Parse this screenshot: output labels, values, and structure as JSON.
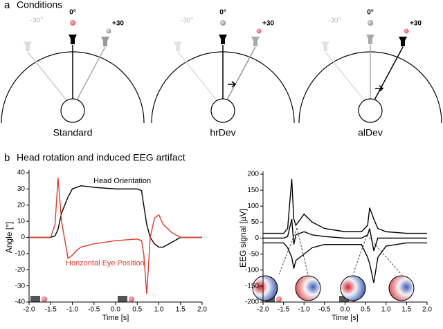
{
  "panel_a": {
    "label": "a",
    "title": "Conditions",
    "angle_labels": [
      "-30°",
      "0°",
      "+30"
    ],
    "conditions": [
      "Standard",
      "hrDev",
      "alDev"
    ]
  },
  "panel_b": {
    "label": "b",
    "title": "Head rotation and induced EEG artifact"
  },
  "chart_data": [
    {
      "type": "line",
      "xlabel": "Time [s]",
      "ylabel": "Angle [°]",
      "x": [
        -2,
        -1.5,
        -1.4,
        -1.33,
        -1.25,
        -1.1,
        -1.0,
        -0.9,
        -0.8,
        -0.5,
        0,
        0.5,
        0.6,
        0.65,
        0.72,
        0.8,
        0.9,
        1.0,
        1.1,
        1.3,
        1.5,
        2.0
      ],
      "series": [
        {
          "name": "Head Orientation",
          "color": "#000000",
          "values": [
            0,
            0,
            1,
            5,
            15,
            25,
            30,
            31,
            32,
            31,
            30,
            30,
            29,
            20,
            8,
            0,
            -4,
            -6,
            -6,
            -3,
            0,
            0
          ]
        },
        {
          "name": "Horizontal Eye Position",
          "color": "#e03a2a",
          "values": [
            0,
            0,
            8,
            37,
            10,
            -13,
            -11,
            -8,
            -6,
            -4,
            -2,
            -1,
            -2,
            -10,
            -35,
            0,
            12,
            14,
            8,
            3,
            0,
            0
          ]
        }
      ],
      "xlim": [
        -2,
        2
      ],
      "xticks": [
        {
          "value": -2,
          "label": "-2.0"
        },
        -1.5,
        {
          "value": -1,
          "label": "-1.0"
        },
        -0.5,
        {
          "value": 0,
          "label": "0.0"
        },
        0.5,
        {
          "value": 1,
          "label": "1.0"
        },
        1.5,
        {
          "value": 2,
          "label": "2.0"
        }
      ],
      "ylim": [
        -40,
        40
      ],
      "yticks": [
        -40,
        -30,
        -20,
        -10,
        0,
        10,
        20,
        30,
        40
      ],
      "grid": false
    },
    {
      "type": "line",
      "xlabel": "Time [s]",
      "ylabel": "EEG signal [µV]",
      "x": [
        -2,
        -1.5,
        -1.4,
        -1.3,
        -1.25,
        -1.2,
        -1.0,
        -0.8,
        -0.5,
        0,
        0.4,
        0.55,
        0.6,
        0.7,
        0.8,
        1.0,
        1.5,
        2.0
      ],
      "series": [
        {
          "color": "#000000",
          "values": [
            15,
            15,
            30,
            185,
            60,
            40,
            75,
            50,
            30,
            20,
            20,
            40,
            95,
            60,
            30,
            20,
            15,
            15
          ]
        },
        {
          "color": "#000000",
          "values": [
            -15,
            -15,
            -30,
            -60,
            -95,
            -70,
            -50,
            -30,
            -20,
            -20,
            -20,
            -60,
            -80,
            -140,
            -60,
            -25,
            -15,
            -15
          ]
        },
        {
          "color": "#000000",
          "values": [
            0,
            0,
            5,
            60,
            -20,
            10,
            20,
            10,
            5,
            0,
            0,
            10,
            30,
            -40,
            0,
            0,
            0,
            0
          ]
        }
      ],
      "xlim": [
        -2,
        2
      ],
      "xticks": [
        {
          "value": -2,
          "label": "-2.0"
        },
        -1.5,
        {
          "value": -1,
          "label": "-1.0"
        },
        -0.5,
        {
          "value": 0,
          "label": "0.0"
        },
        0.5,
        {
          "value": 1,
          "label": "1.0"
        },
        1.5,
        {
          "value": 2,
          "label": "2.0"
        }
      ],
      "ylim": [
        -200,
        200
      ],
      "yticks": [
        -200,
        -150,
        -100,
        -50,
        0,
        50,
        100,
        150,
        200
      ],
      "grid": false
    }
  ]
}
